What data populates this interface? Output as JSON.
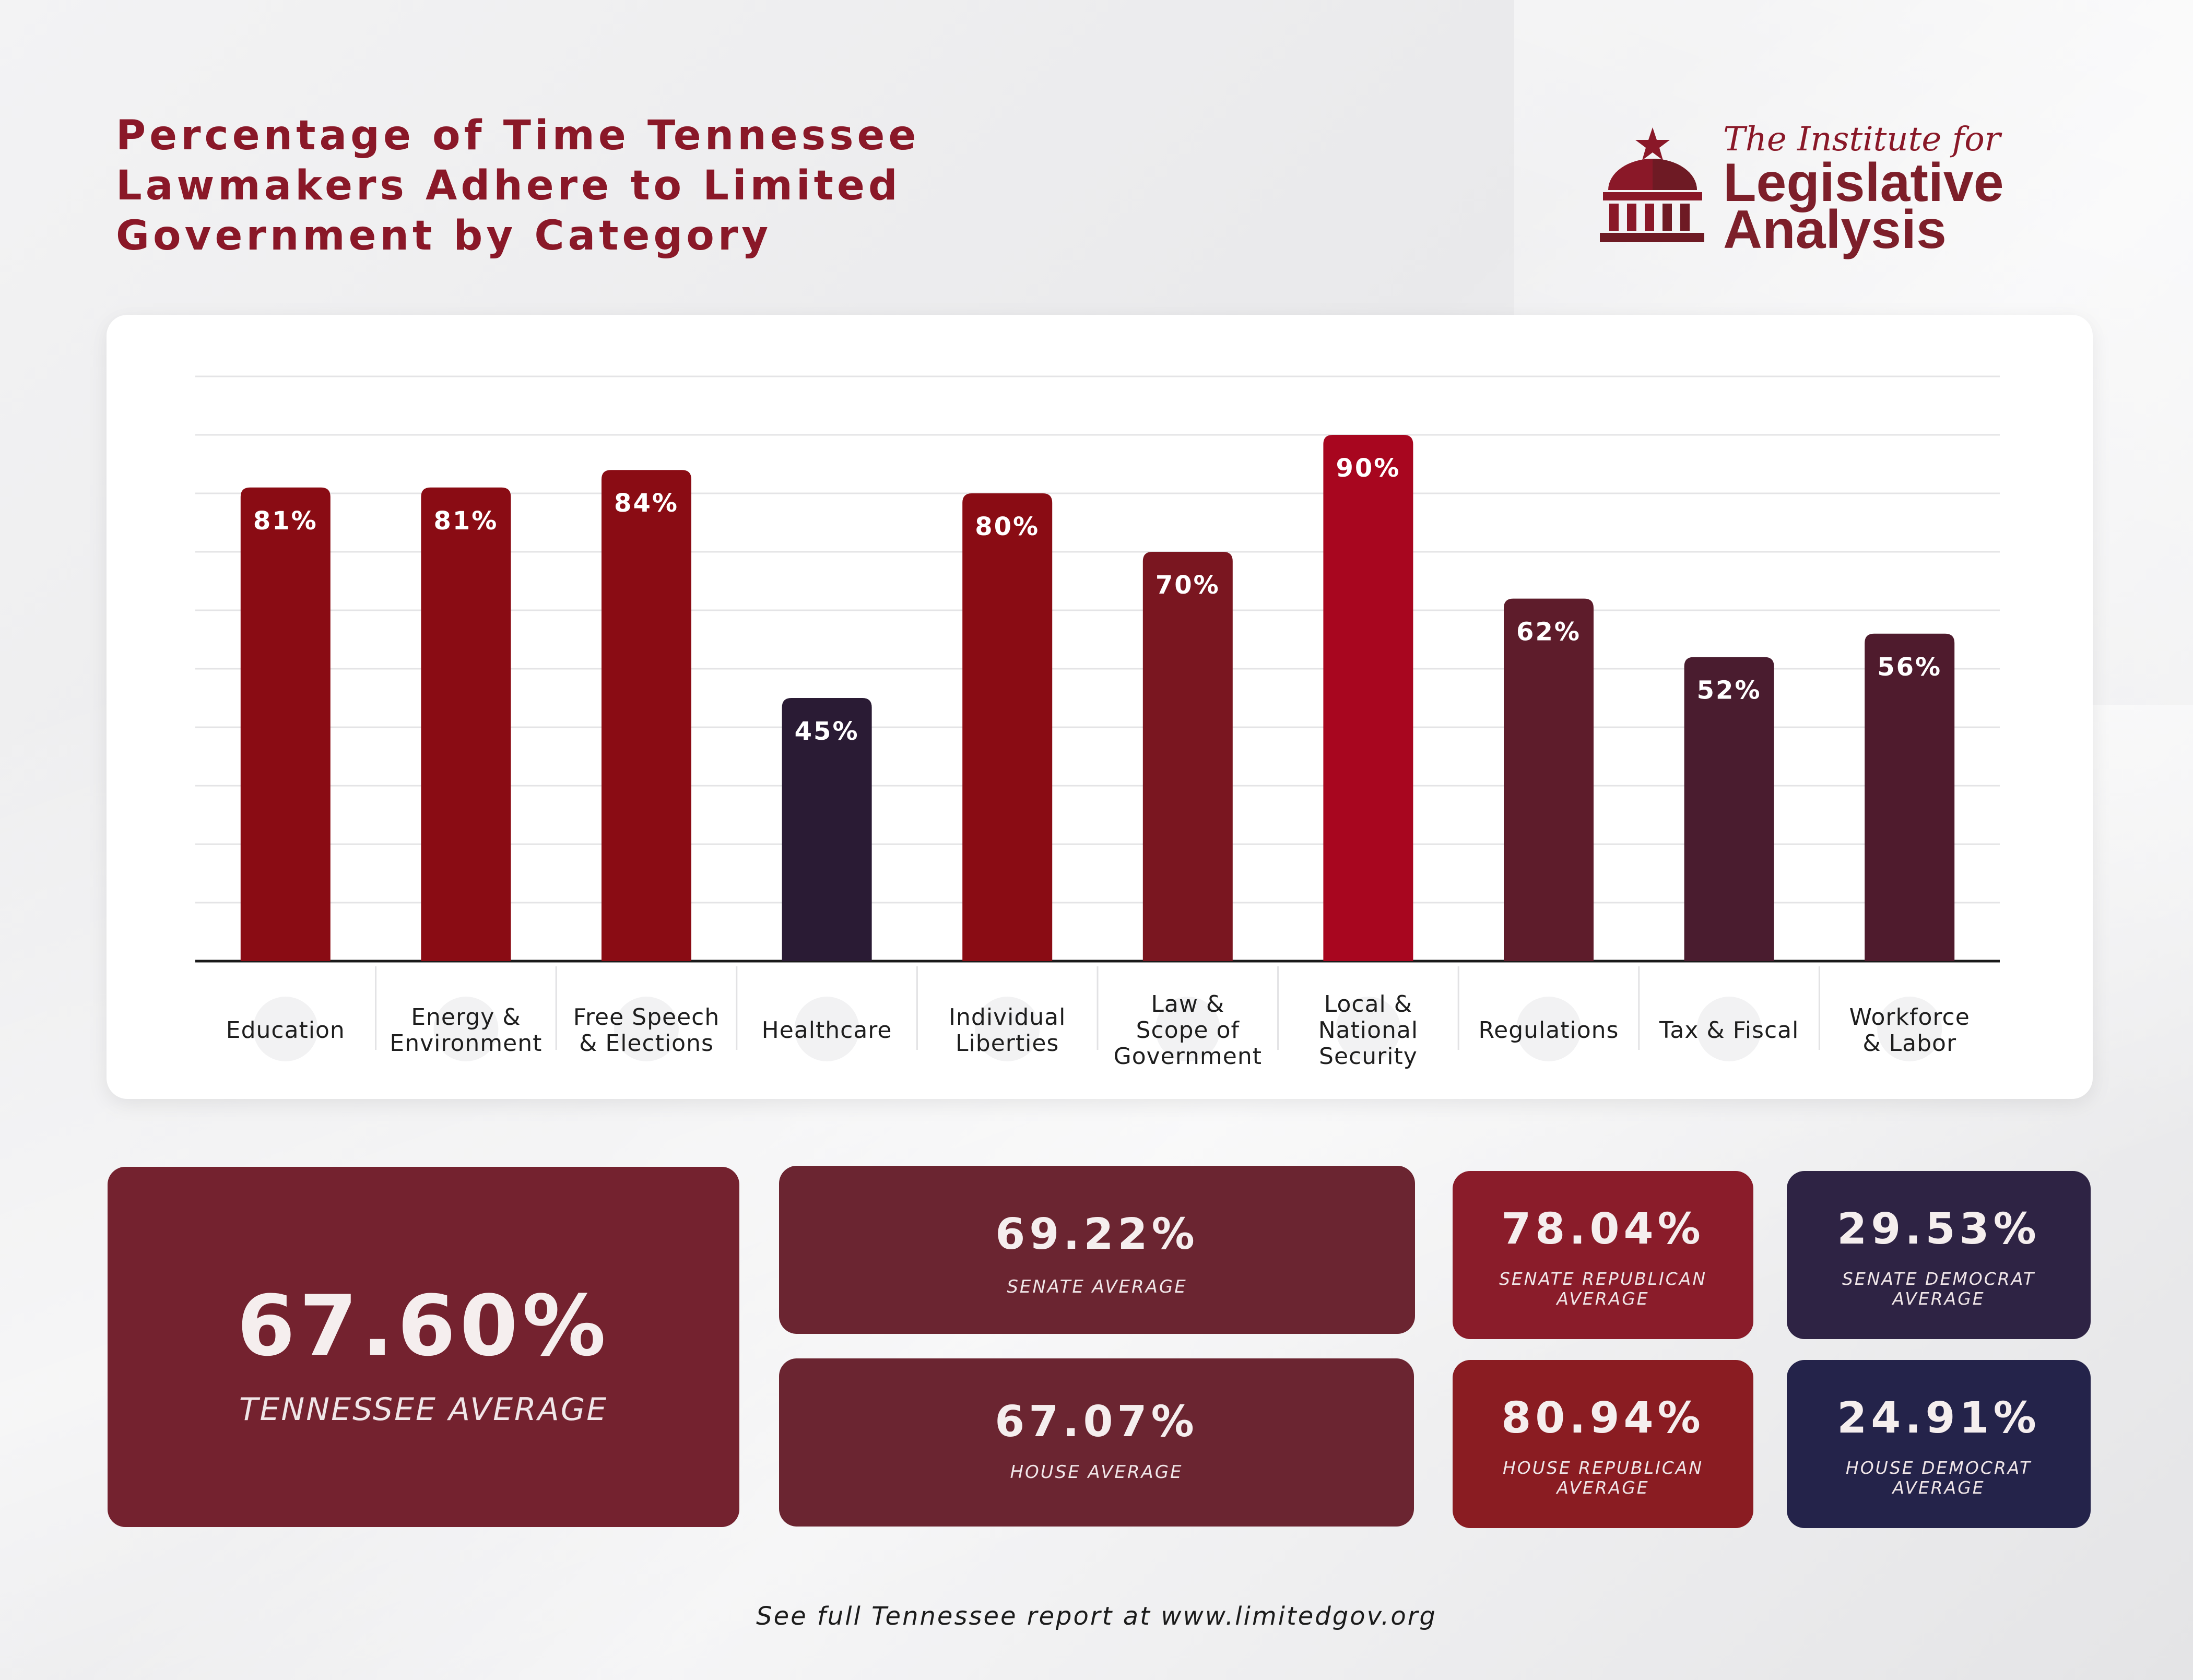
{
  "title": {
    "lines": [
      "Percentage of Time Tennessee",
      "Lawmakers Adhere to Limited",
      "Government by Category"
    ]
  },
  "logo": {
    "line1": "The Institute for",
    "line2": "Legislative",
    "line3": "Analysis",
    "icon": "capitol-dome-icon"
  },
  "chart_data": {
    "type": "bar",
    "categories": [
      [
        "Education"
      ],
      [
        "Energy &",
        "Environment"
      ],
      [
        "Free Speech",
        "& Elections"
      ],
      [
        "Healthcare"
      ],
      [
        "Individual",
        "Liberties"
      ],
      [
        "Law &",
        "Scope of",
        "Government"
      ],
      [
        "Local &",
        "National",
        "Security"
      ],
      [
        "Regulations"
      ],
      [
        "Tax & Fiscal"
      ],
      [
        "Workforce",
        "& Labor"
      ]
    ],
    "values": [
      81,
      81,
      84,
      45,
      80,
      70,
      90,
      62,
      52,
      56
    ],
    "value_labels": [
      "81%",
      "81%",
      "84%",
      "45%",
      "80%",
      "70%",
      "90%",
      "62%",
      "52%",
      "56%"
    ],
    "bar_colors": [
      "#8a0c14",
      "#8a0c14",
      "#8a0c14",
      "#2a1b34",
      "#8a0c14",
      "#7a1620",
      "#a8061f",
      "#5e1c2b",
      "#4a1c2f",
      "#4f1b2d"
    ],
    "category_icons": [
      "graduation-cap-icon",
      "factory-icon",
      "megaphone-icon",
      "caduceus-icon",
      "torch-icon",
      "gavel-icon",
      "shield-icon",
      "documents-icon",
      "dollar-icon",
      "handshake-icon"
    ],
    "ylim": [
      0,
      100
    ],
    "grid": true,
    "ylabel": "",
    "xlabel": ""
  },
  "summary": {
    "tennessee": {
      "value": "67.60%",
      "label": "TENNESSEE AVERAGE"
    },
    "senate": {
      "value": "69.22%",
      "label": "SENATE AVERAGE"
    },
    "house": {
      "value": "67.07%",
      "label": "HOUSE AVERAGE"
    },
    "senate_rep": {
      "value": "78.04%",
      "label": "SENATE REPUBLICAN AVERAGE"
    },
    "house_rep": {
      "value": "80.94%",
      "label": "HOUSE REPUBLICAN AVERAGE"
    },
    "senate_dem": {
      "value": "29.53%",
      "label": "SENATE DEMOCRAT AVERAGE"
    },
    "house_dem": {
      "value": "24.91%",
      "label": "HOUSE DEMOCRAT AVERAGE"
    }
  },
  "footer": "See full Tennessee report at www.limitedgov.org"
}
